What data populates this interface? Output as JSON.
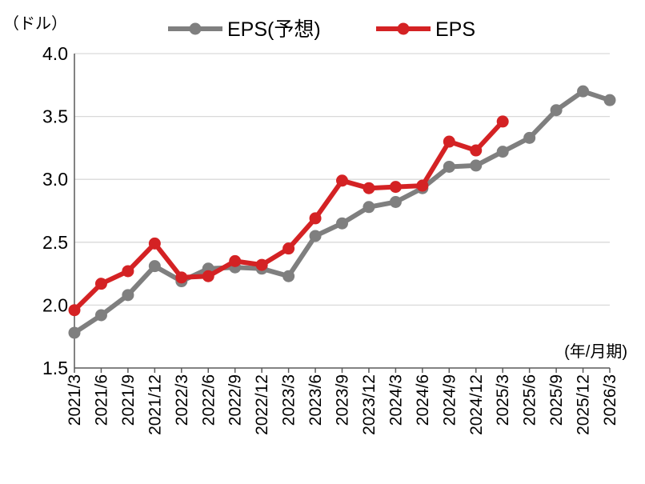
{
  "chart_data": {
    "type": "line",
    "title": "",
    "y_unit_label": "（ドル）",
    "x_unit_label": "(年/月期)",
    "categories": [
      "2021/3",
      "2021/6",
      "2021/9",
      "2021/12",
      "2022/3",
      "2022/6",
      "2022/9",
      "2022/12",
      "2023/3",
      "2023/6",
      "2023/9",
      "2023/12",
      "2024/3",
      "2024/6",
      "2024/9",
      "2024/12",
      "2025/3",
      "2025/6",
      "2025/9",
      "2025/12",
      "2026/3"
    ],
    "ylim": [
      1.5,
      4.0
    ],
    "yticks": [
      "1.5",
      "2.0",
      "2.5",
      "3.0",
      "3.5",
      "4.0"
    ],
    "grid": true,
    "legend_position": "top-center",
    "series": [
      {
        "name": "EPS(予想)",
        "color": "#7f7f7f",
        "values": [
          1.78,
          1.92,
          2.08,
          2.31,
          2.19,
          2.29,
          2.3,
          2.29,
          2.23,
          2.55,
          2.65,
          2.78,
          2.82,
          2.93,
          3.1,
          3.11,
          3.22,
          3.33,
          3.55,
          3.7,
          3.63
        ]
      },
      {
        "name": "EPS",
        "color": "#d42224",
        "values": [
          1.96,
          2.17,
          2.27,
          2.49,
          2.22,
          2.23,
          2.35,
          2.32,
          2.45,
          2.69,
          2.99,
          2.93,
          2.94,
          2.95,
          3.3,
          3.23,
          3.46,
          null,
          null,
          null,
          null
        ]
      }
    ]
  }
}
